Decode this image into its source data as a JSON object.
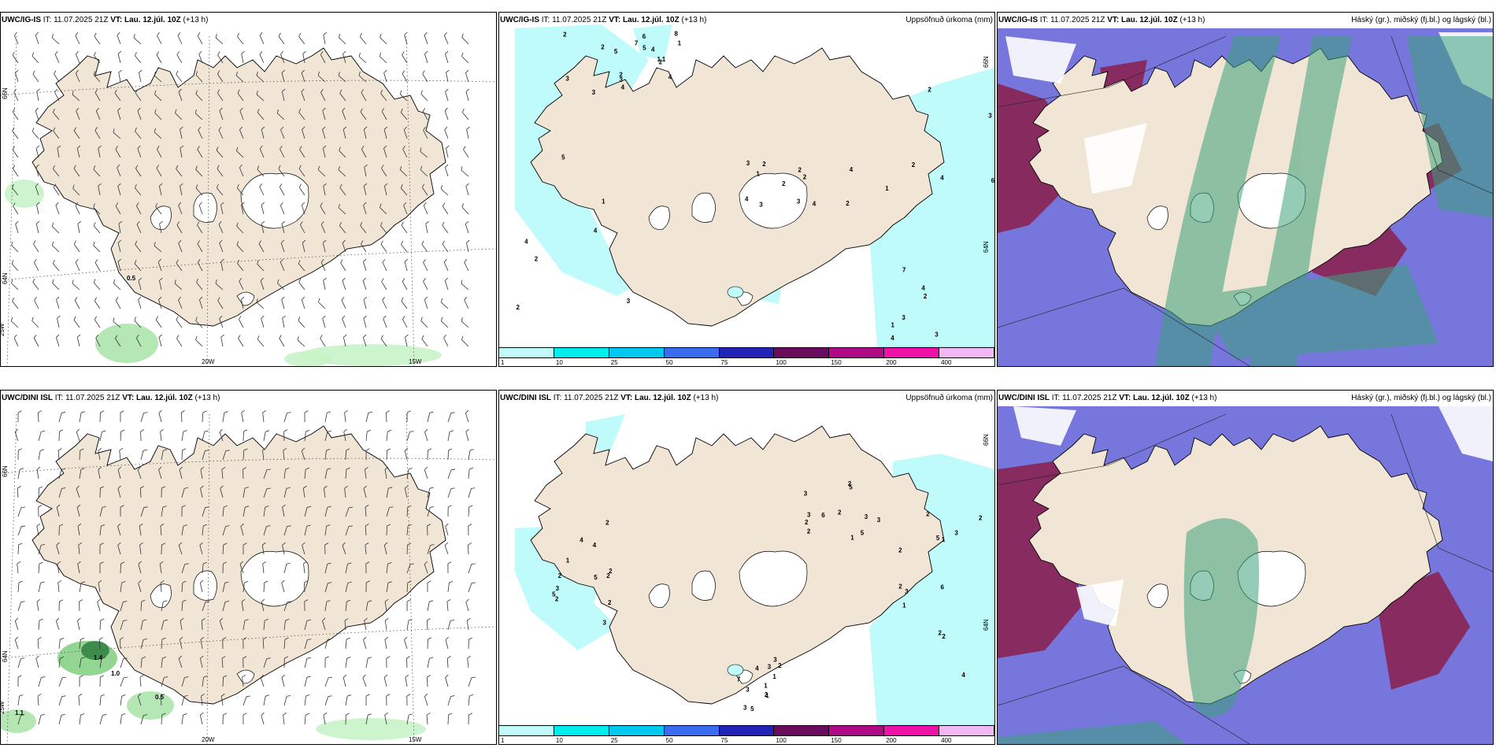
{
  "panels": [
    {
      "id": "p1",
      "src": "UWC/IG-IS",
      "it": "IT: 11.07.2025 21Z",
      "vt_label": "VT:",
      "vt": "Lau. 12.júl. 10Z",
      "lead": "(+13 h)",
      "right": ""
    },
    {
      "id": "p2",
      "src": "UWC/IG-IS",
      "it": "IT: 11.07.2025 21Z",
      "vt_label": "VT:",
      "vt": "Lau. 12.júl. 10Z",
      "lead": "(+13 h)",
      "right": "Uppsöfnuð úrkoma (mm)"
    },
    {
      "id": "p3",
      "src": "UWC/IG-IS",
      "it": "IT: 11.07.2025 21Z",
      "vt_label": "VT:",
      "vt": "Lau. 12.júl. 10Z",
      "lead": "(+13 h)",
      "right": "Háský (gr.), miðský (fj.bl.) og lágský (bl.)"
    },
    {
      "id": "p4",
      "src": "UWC/DINI ISL",
      "it": "IT: 11.07.2025 21Z",
      "vt_label": "VT:",
      "vt": "Lau. 12.júl. 10Z",
      "lead": "(+13 h)",
      "right": ""
    },
    {
      "id": "p5",
      "src": "UWC/DINI ISL",
      "it": "IT: 11.07.2025 21Z",
      "vt_label": "VT:",
      "vt": "Lau. 12.júl. 10Z",
      "lead": "(+13 h)",
      "right": "Uppsöfnuð úrkoma (mm)"
    },
    {
      "id": "p6",
      "src": "UWC/DINI ISL",
      "it": "IT: 11.07.2025 21Z",
      "vt_label": "VT:",
      "vt": "Lau. 12.júl. 10Z",
      "lead": "(+13 h)",
      "right": "Háský (gr.), miðský (fj.bl.) og lágský (bl.)"
    }
  ],
  "axis_labels": {
    "lat66": "66N",
    "lat64": "64N",
    "lon25": "25W",
    "lon20": "20W",
    "lon15": "15W"
  },
  "wind_values": {
    "top": [
      "0.5"
    ],
    "bottom": [
      "1.4",
      "1.0",
      "0.5",
      "1.1"
    ]
  },
  "precip_legend": {
    "ticks": [
      "1",
      "10",
      "25",
      "50",
      "75",
      "100",
      "150",
      "200",
      "400"
    ],
    "colors": [
      "#c0fbfb",
      "#00ecec",
      "#00c8ef",
      "#3b6cf0",
      "#2323b8",
      "#6b0b5e",
      "#b00b86",
      "#f012a8",
      "#f3b7f3"
    ]
  },
  "precip_values_top": [
    "3",
    "1",
    "8",
    "2",
    "3",
    "1",
    "6",
    "2",
    "4",
    "2",
    "2",
    "3",
    "3",
    "4",
    "1",
    "3",
    "2",
    "6",
    "1",
    "4",
    "5",
    "4",
    "5",
    "2",
    "2",
    "7",
    "4",
    "2",
    "1",
    "3",
    "7",
    "1",
    "4",
    "3",
    "1",
    "2",
    "2",
    "2",
    "4",
    "4",
    "4",
    "3",
    "2",
    "4",
    "2",
    "4",
    "3",
    "3",
    "5",
    "2"
  ],
  "precip_values_bottom": [
    "3",
    "1",
    "2",
    "3",
    "2",
    "2",
    "3",
    "6",
    "4",
    "5",
    "3",
    "5",
    "2",
    "2",
    "1",
    "2",
    "5",
    "6",
    "7",
    "2",
    "2",
    "1",
    "1",
    "3",
    "2",
    "2",
    "3",
    "2",
    "1",
    "2",
    "1",
    "3",
    "5",
    "3",
    "4",
    "3",
    "2",
    "4",
    "3",
    "1",
    "3",
    "2",
    "5",
    "2",
    "2",
    "3",
    "2",
    "5",
    "4",
    "2"
  ],
  "colors": {
    "land": "#f1e5d5",
    "glacier": "#ffffff",
    "wind_green": "#c6f2c6",
    "precip_cyan": "#c0fbfb",
    "cloud_high": "#3da37c",
    "cloud_mid": "#5e5ed6",
    "cloud_low": "#8b1f4a"
  }
}
